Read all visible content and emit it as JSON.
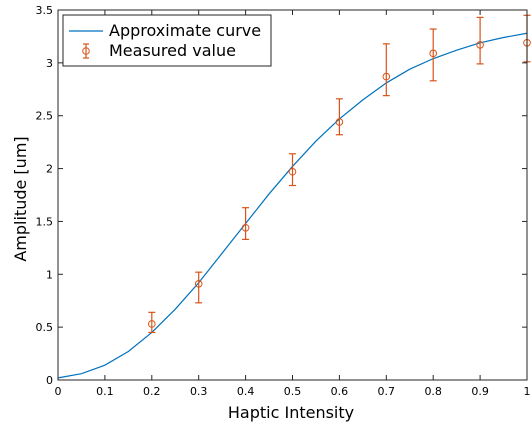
{
  "chart_data": {
    "type": "line",
    "xlabel": "Haptic Intensity",
    "ylabel": "Amplitude [um]",
    "xlim": [
      0,
      1
    ],
    "ylim": [
      0,
      3.5
    ],
    "grid": false,
    "legend_position": "top-left",
    "x_ticks": [
      0,
      0.1,
      0.2,
      0.3,
      0.4,
      0.5,
      0.6,
      0.7,
      0.8,
      0.9,
      1
    ],
    "x_tick_labels": [
      "0",
      "0.1",
      "0.2",
      "0.3",
      "0.4",
      "0.5",
      "0.6",
      "0.7",
      "0.8",
      "0.9",
      "1"
    ],
    "y_ticks": [
      0,
      0.5,
      1,
      1.5,
      2,
      2.5,
      3,
      3.5
    ],
    "y_tick_labels": [
      "0",
      "0.5",
      "1",
      "1.5",
      "2",
      "2.5",
      "3",
      "3.5"
    ],
    "series": [
      {
        "name": "Approximate curve",
        "kind": "line",
        "color": "#0072BD",
        "x": [
          0,
          0.05,
          0.1,
          0.15,
          0.2,
          0.25,
          0.3,
          0.35,
          0.4,
          0.45,
          0.5,
          0.55,
          0.6,
          0.65,
          0.7,
          0.75,
          0.8,
          0.85,
          0.9,
          0.95,
          1
        ],
        "y": [
          0.02,
          0.06,
          0.14,
          0.27,
          0.45,
          0.67,
          0.92,
          1.2,
          1.48,
          1.76,
          2.02,
          2.26,
          2.47,
          2.65,
          2.81,
          2.94,
          3.04,
          3.12,
          3.19,
          3.24,
          3.28
        ]
      },
      {
        "name": "Measured value",
        "kind": "errorbar",
        "color": "#D95319",
        "x": [
          0.2,
          0.3,
          0.4,
          0.5,
          0.6,
          0.7,
          0.8,
          0.9,
          1.0
        ],
        "y": [
          0.53,
          0.91,
          1.44,
          1.97,
          2.44,
          2.87,
          3.09,
          3.17,
          3.19
        ],
        "lower": [
          0.45,
          0.73,
          1.33,
          1.84,
          2.32,
          2.69,
          2.83,
          2.99,
          3.01
        ],
        "upper": [
          0.64,
          1.02,
          1.63,
          2.14,
          2.66,
          3.18,
          3.32,
          3.43,
          3.45
        ]
      }
    ]
  }
}
